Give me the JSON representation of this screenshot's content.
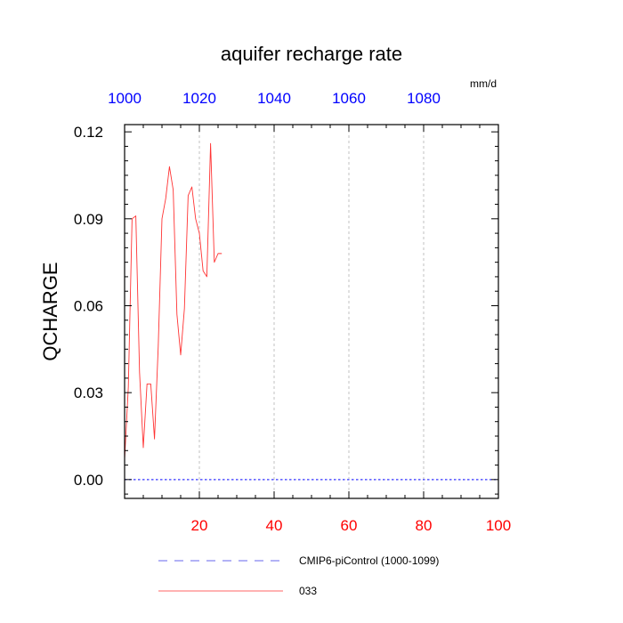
{
  "chart_data": {
    "type": "line",
    "title": "aquifer recharge rate",
    "units": "mm/d",
    "ylabel": "QCHARGE",
    "xlabel": "",
    "xlim": [
      0,
      100
    ],
    "ylim": [
      -0.0065,
      0.1225
    ],
    "x_ticks": [
      20,
      40,
      60,
      80,
      100
    ],
    "x_tick_labels": [
      "20",
      "40",
      "60",
      "80",
      "100"
    ],
    "top_ticks": [
      0,
      20,
      40,
      60,
      80
    ],
    "top_tick_labels": [
      "1000",
      "1020",
      "1040",
      "1060",
      "1080"
    ],
    "y_ticks": [
      0,
      0.03,
      0.06,
      0.09,
      0.12
    ],
    "y_tick_labels": [
      "0.00",
      "0.03",
      "0.06",
      "0.09",
      "0.12"
    ],
    "grid_x": [
      20,
      40,
      60,
      80
    ],
    "colors": {
      "bottom_axis": "#ff0000",
      "top_axis": "#0000ff",
      "control": "#3333ff",
      "series": "#ff3333"
    },
    "legend": {
      "placement": "bottom",
      "entries": [
        {
          "label": "CMIP6-piControl (1000-1099)",
          "style": "dashed",
          "color": "#6666ee"
        },
        {
          "label": "033",
          "style": "solid",
          "color": "#ff3333"
        }
      ]
    },
    "series": [
      {
        "name": "CMIP6-piControl (1000-1099)",
        "style": "dashed",
        "x": [
          0,
          100
        ],
        "values": [
          0,
          0
        ]
      },
      {
        "name": "033",
        "style": "solid",
        "x": [
          0,
          1,
          2,
          3,
          4,
          5,
          6,
          7,
          8,
          9,
          10,
          11,
          12,
          13,
          14,
          15,
          16,
          17,
          18,
          19,
          20,
          21,
          22,
          23,
          24,
          25,
          26
        ],
        "values": [
          0.007,
          0.032,
          0.09,
          0.091,
          0.037,
          0.011,
          0.033,
          0.033,
          0.014,
          0.046,
          0.09,
          0.097,
          0.108,
          0.1,
          0.057,
          0.043,
          0.059,
          0.098,
          0.101,
          0.09,
          0.085,
          0.072,
          0.07,
          0.116,
          0.075,
          0.078,
          0.078
        ]
      }
    ]
  }
}
